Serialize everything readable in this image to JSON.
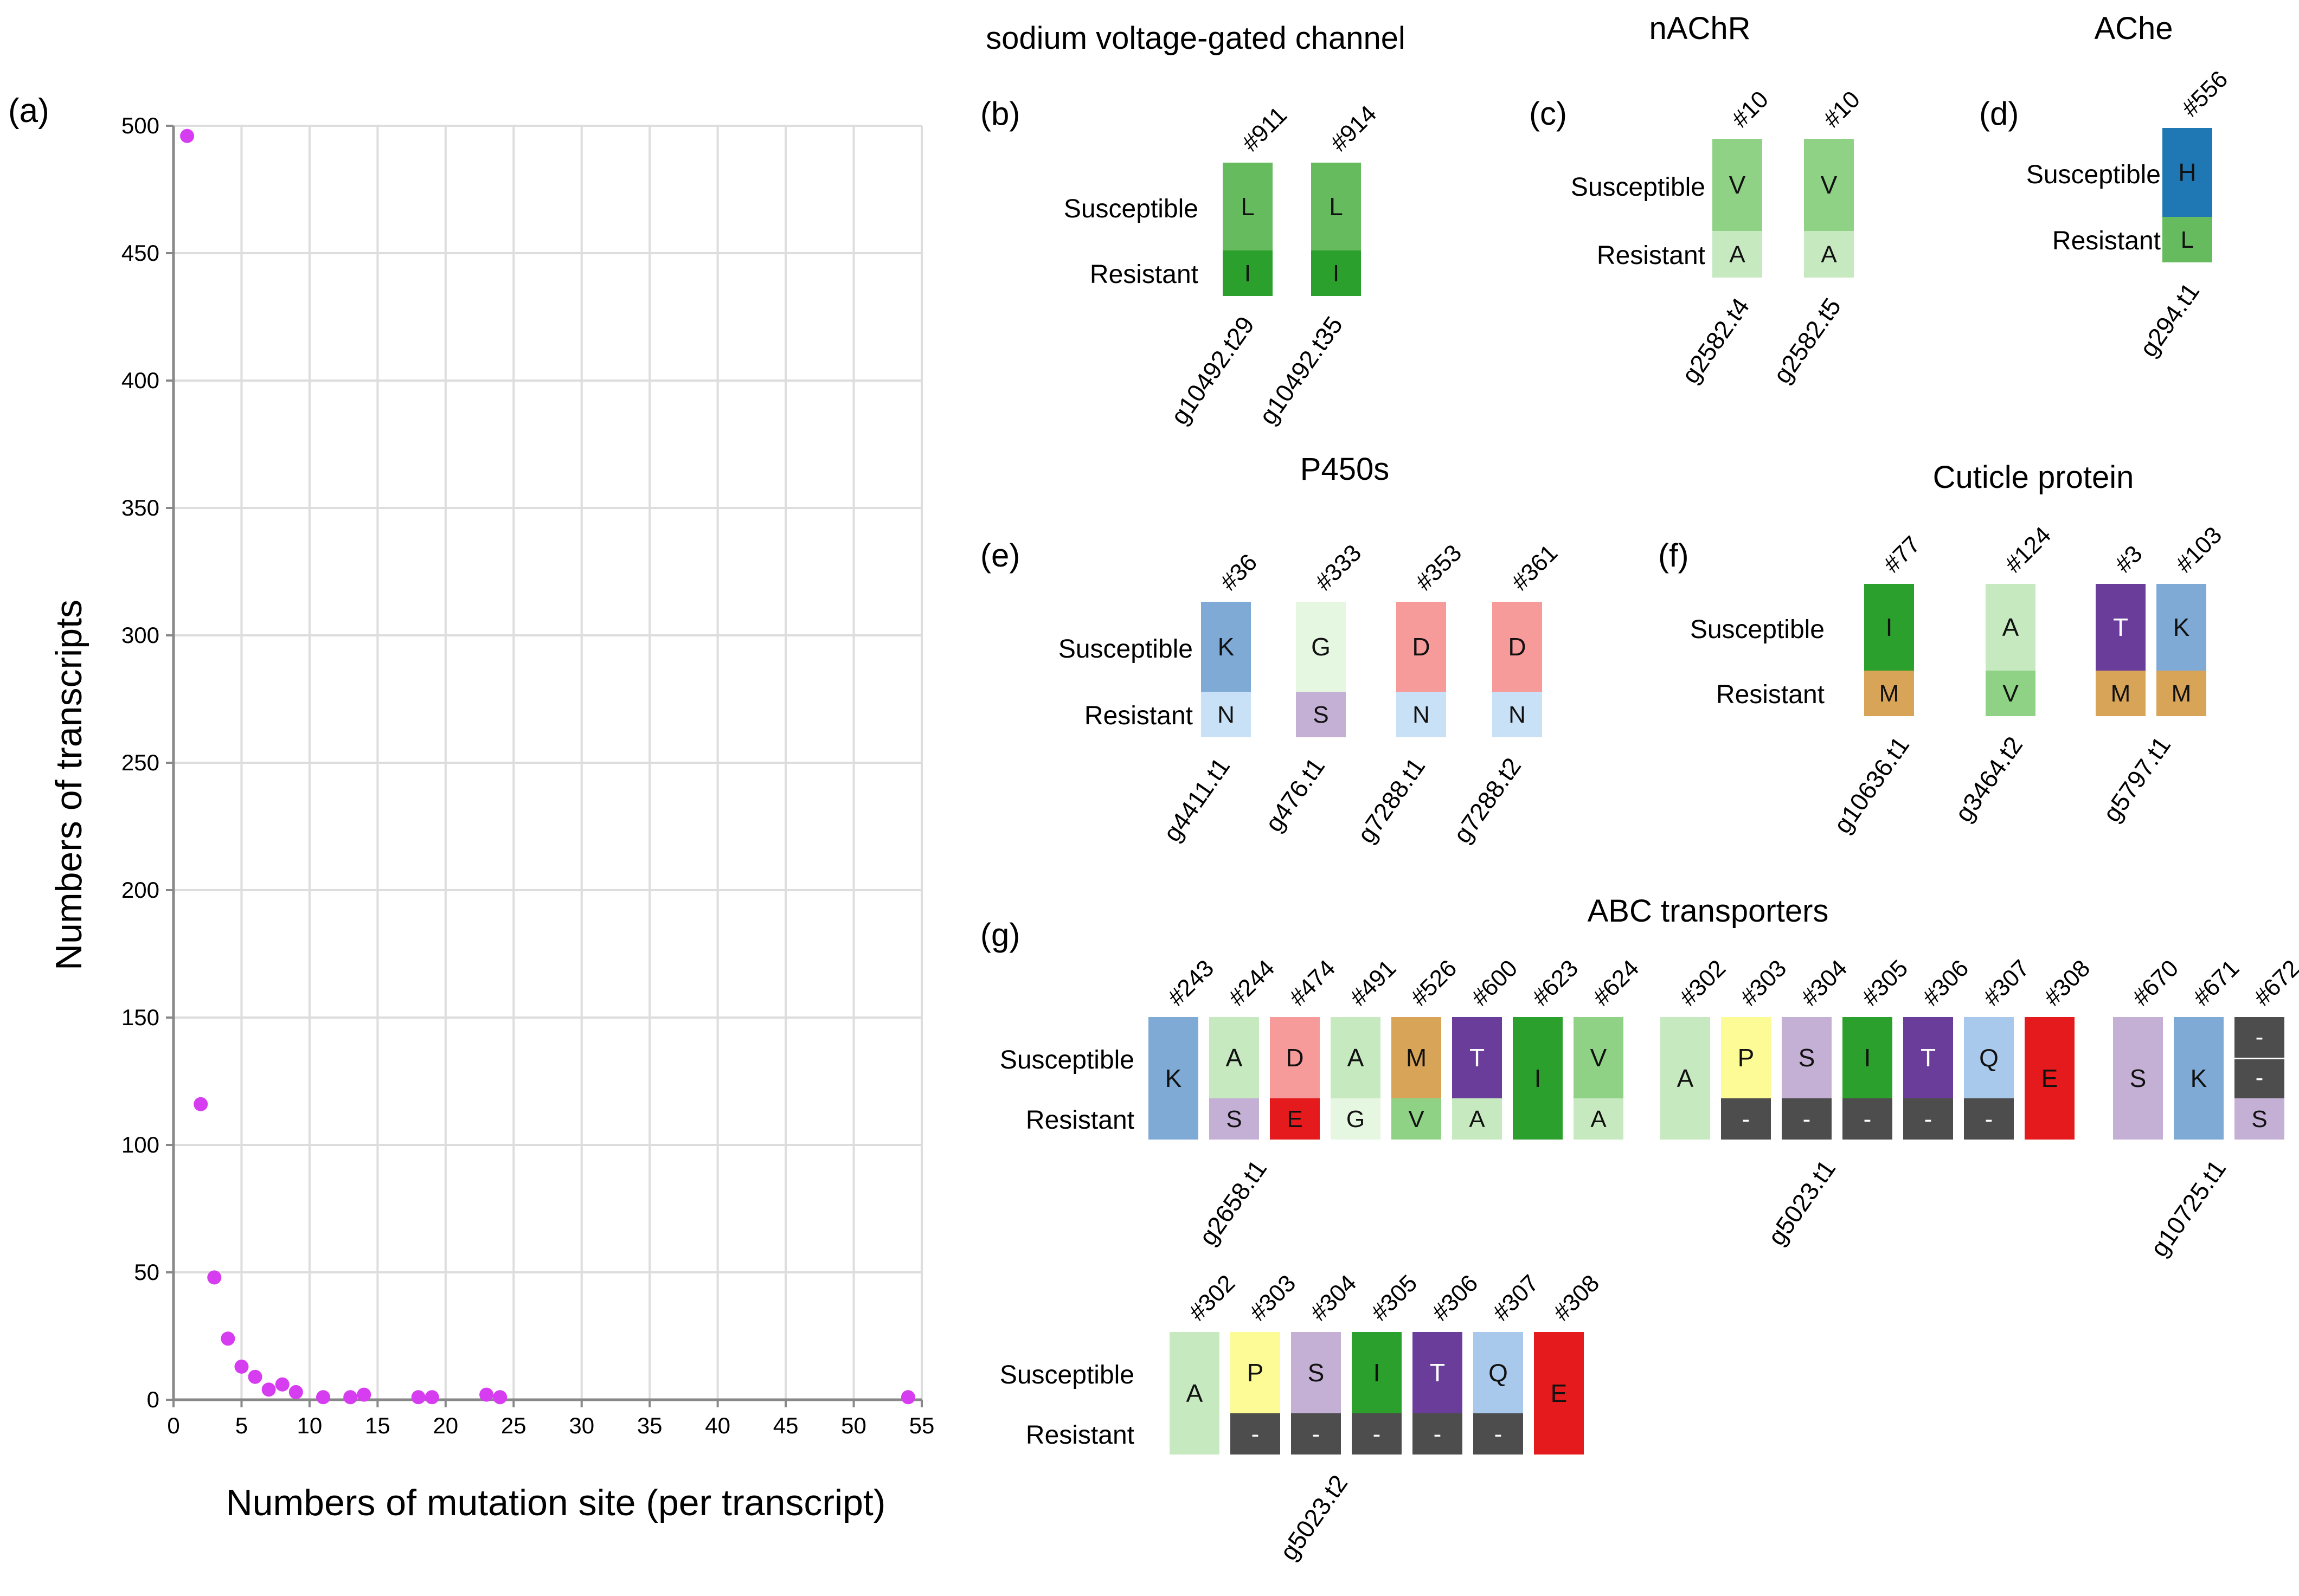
{
  "figure": {
    "panel_a_label": "(a)",
    "labels": {
      "susceptible": "Susceptible",
      "resistant": "Resistant"
    }
  },
  "palette": {
    "green_light": "#c6e9c0",
    "green_mid": "#8fd285",
    "green_2": "#66bb5e",
    "green_dark": "#2ca02c",
    "blue": "#1f77b4",
    "steel": "#7faad6",
    "lightblue": "#c9e1f7",
    "paleblue": "#a9c9ec",
    "pink": "#f79a9a",
    "red": "#e41a1c",
    "lavender": "#c5b0d5",
    "purple": "#6a3d9a",
    "tan": "#d8a458",
    "yellow": "#fdfb96",
    "gray": "#4d4d4d",
    "mint": "#e6f7e1",
    "dot": "#d63cf0"
  },
  "chart_data": {
    "type": "scatter",
    "title": "",
    "xlabel": "Numbers of mutation site (per transcript)",
    "ylabel": "Numbers of transcripts",
    "xlim": [
      0,
      55
    ],
    "ylim": [
      0,
      500
    ],
    "xticks": [
      "0",
      "5",
      "10",
      "15",
      "20",
      "25",
      "30",
      "35",
      "40",
      "45",
      "50",
      "55"
    ],
    "yticks": [
      "0",
      "50",
      "100",
      "150",
      "200",
      "250",
      "300",
      "350",
      "400",
      "450",
      "500"
    ],
    "grid": true,
    "points": [
      {
        "x": 1,
        "y": 496
      },
      {
        "x": 2,
        "y": 116
      },
      {
        "x": 3,
        "y": 48
      },
      {
        "x": 4,
        "y": 24
      },
      {
        "x": 5,
        "y": 13
      },
      {
        "x": 6,
        "y": 9
      },
      {
        "x": 7,
        "y": 4
      },
      {
        "x": 8,
        "y": 6
      },
      {
        "x": 9,
        "y": 3
      },
      {
        "x": 11,
        "y": 1
      },
      {
        "x": 13,
        "y": 1
      },
      {
        "x": 14,
        "y": 2
      },
      {
        "x": 18,
        "y": 1
      },
      {
        "x": 19,
        "y": 1
      },
      {
        "x": 23,
        "y": 2
      },
      {
        "x": 24,
        "y": 1
      },
      {
        "x": 54,
        "y": 1
      }
    ]
  },
  "panels": [
    {
      "id": "b",
      "label": "(b)",
      "title": "sodium voltage-gated channel",
      "groups": [
        {
          "transcript": "g10492.t29",
          "sites": [
            {
              "pos": "#911",
              "sus": "L",
              "res": "I",
              "sus_color": "green_2",
              "res_color": "green_dark"
            }
          ]
        },
        {
          "transcript": "g10492.t35",
          "sites": [
            {
              "pos": "#914",
              "sus": "L",
              "res": "I",
              "sus_color": "green_2",
              "res_color": "green_dark"
            }
          ]
        }
      ]
    },
    {
      "id": "c",
      "label": "(c)",
      "title": "nAChR",
      "groups": [
        {
          "transcript": "g2582.t4",
          "sites": [
            {
              "pos": "#10",
              "sus": "V",
              "res": "A",
              "sus_color": "green_mid",
              "res_color": "green_light"
            }
          ]
        },
        {
          "transcript": "g2582.t5",
          "sites": [
            {
              "pos": "#10",
              "sus": "V",
              "res": "A",
              "sus_color": "green_mid",
              "res_color": "green_light"
            }
          ]
        }
      ]
    },
    {
      "id": "d",
      "label": "(d)",
      "title": "AChe",
      "groups": [
        {
          "transcript": "g294.t1",
          "sites": [
            {
              "pos": "#556",
              "sus": "H",
              "res": "L",
              "sus_color": "blue",
              "res_color": "green_2"
            }
          ]
        }
      ]
    },
    {
      "id": "e",
      "label": "(e)",
      "title": "P450s",
      "groups": [
        {
          "transcript": "g4411.t1",
          "sites": [
            {
              "pos": "#36",
              "sus": "K",
              "res": "N",
              "sus_color": "steel",
              "res_color": "lightblue"
            }
          ]
        },
        {
          "transcript": "g476.t1",
          "sites": [
            {
              "pos": "#333",
              "sus": "G",
              "res": "S",
              "sus_color": "mint",
              "res_color": "lavender"
            }
          ]
        },
        {
          "transcript": "g7288.t1",
          "sites": [
            {
              "pos": "#353",
              "sus": "D",
              "res": "N",
              "sus_color": "pink",
              "res_color": "lightblue"
            }
          ]
        },
        {
          "transcript": "g7288.t2",
          "sites": [
            {
              "pos": "#361",
              "sus": "D",
              "res": "N",
              "sus_color": "pink",
              "res_color": "lightblue"
            }
          ]
        }
      ]
    },
    {
      "id": "f",
      "label": "(f)",
      "title": "Cuticle protein",
      "groups": [
        {
          "transcript": "g10636.t1",
          "sites": [
            {
              "pos": "#77",
              "sus": "I",
              "res": "M",
              "sus_color": "green_dark",
              "res_color": "tan"
            }
          ]
        },
        {
          "transcript": "g3464.t2",
          "sites": [
            {
              "pos": "#124",
              "sus": "A",
              "res": "V",
              "sus_color": "green_light",
              "res_color": "green_mid"
            }
          ]
        },
        {
          "transcript": "g5797.t1",
          "sites": [
            {
              "pos": "#3",
              "sus": "T",
              "res": "M",
              "sus_color": "purple",
              "res_color": "tan"
            },
            {
              "pos": "#103",
              "sus": "K",
              "res": "M",
              "sus_color": "steel",
              "res_color": "tan"
            }
          ]
        }
      ]
    },
    {
      "id": "g",
      "label": "(g)",
      "title": "ABC transporters",
      "groups": [
        {
          "transcript": "g2658.t1",
          "sites": [
            {
              "pos": "#243",
              "sus": "K",
              "res": "",
              "sus_color": "steel",
              "res_color": "steel"
            },
            {
              "pos": "#244",
              "sus": "A",
              "res": "S",
              "sus_color": "green_light",
              "res_color": "lavender"
            },
            {
              "pos": "#474",
              "sus": "D",
              "res": "E",
              "sus_color": "pink",
              "res_color": "red"
            },
            {
              "pos": "#491",
              "sus": "A",
              "res": "G",
              "sus_color": "green_light",
              "res_color": "mint"
            },
            {
              "pos": "#526",
              "sus": "M",
              "res": "V",
              "sus_color": "tan",
              "res_color": "green_mid"
            },
            {
              "pos": "#600",
              "sus": "T",
              "res": "A",
              "sus_color": "purple",
              "res_color": "green_light"
            },
            {
              "pos": "#623",
              "sus": "I",
              "res": "",
              "sus_color": "green_dark",
              "res_color": "green_dark"
            },
            {
              "pos": "#624",
              "sus": "V",
              "res": "A",
              "sus_color": "green_mid",
              "res_color": "green_light"
            }
          ]
        },
        {
          "transcript": "g5023.t1",
          "sites": [
            {
              "pos": "#302",
              "sus": "A",
              "res": "",
              "sus_color": "green_light",
              "res_color": "green_light"
            },
            {
              "pos": "#303",
              "sus": "P",
              "res": "-",
              "sus_color": "yellow",
              "res_color": "gray"
            },
            {
              "pos": "#304",
              "sus": "S",
              "res": "-",
              "sus_color": "lavender",
              "res_color": "gray"
            },
            {
              "pos": "#305",
              "sus": "I",
              "res": "-",
              "sus_color": "green_dark",
              "res_color": "gray"
            },
            {
              "pos": "#306",
              "sus": "T",
              "res": "-",
              "sus_color": "purple",
              "res_color": "gray"
            },
            {
              "pos": "#307",
              "sus": "Q",
              "res": "-",
              "sus_color": "paleblue",
              "res_color": "gray"
            },
            {
              "pos": "#308",
              "sus": "E",
              "res": "",
              "sus_color": "red",
              "res_color": "red"
            }
          ]
        },
        {
          "transcript": "g10725.t1",
          "sites": [
            {
              "pos": "#670",
              "sus": "S",
              "res": "",
              "sus_color": "lavender",
              "res_color": "lavender"
            },
            {
              "pos": "#671",
              "sus": "K",
              "res": "",
              "sus_color": "steel",
              "res_color": "steel"
            },
            {
              "pos": "#672",
              "sus": "-",
              "sus2": "-",
              "res": "S",
              "sus_color": "gray",
              "res_color": "lavender"
            }
          ]
        }
      ]
    },
    {
      "id": "g2",
      "label": "",
      "title": "",
      "groups": [
        {
          "transcript": "g5023.t2",
          "sites": [
            {
              "pos": "#302",
              "sus": "A",
              "res": "",
              "sus_color": "green_light",
              "res_color": "green_light"
            },
            {
              "pos": "#303",
              "sus": "P",
              "res": "-",
              "sus_color": "yellow",
              "res_color": "gray"
            },
            {
              "pos": "#304",
              "sus": "S",
              "res": "-",
              "sus_color": "lavender",
              "res_color": "gray"
            },
            {
              "pos": "#305",
              "sus": "I",
              "res": "-",
              "sus_color": "green_dark",
              "res_color": "gray"
            },
            {
              "pos": "#306",
              "sus": "T",
              "res": "-",
              "sus_color": "purple",
              "res_color": "gray"
            },
            {
              "pos": "#307",
              "sus": "Q",
              "res": "-",
              "sus_color": "paleblue",
              "res_color": "gray"
            },
            {
              "pos": "#308",
              "sus": "E",
              "res": "",
              "sus_color": "red",
              "res_color": "red"
            }
          ]
        }
      ]
    }
  ]
}
